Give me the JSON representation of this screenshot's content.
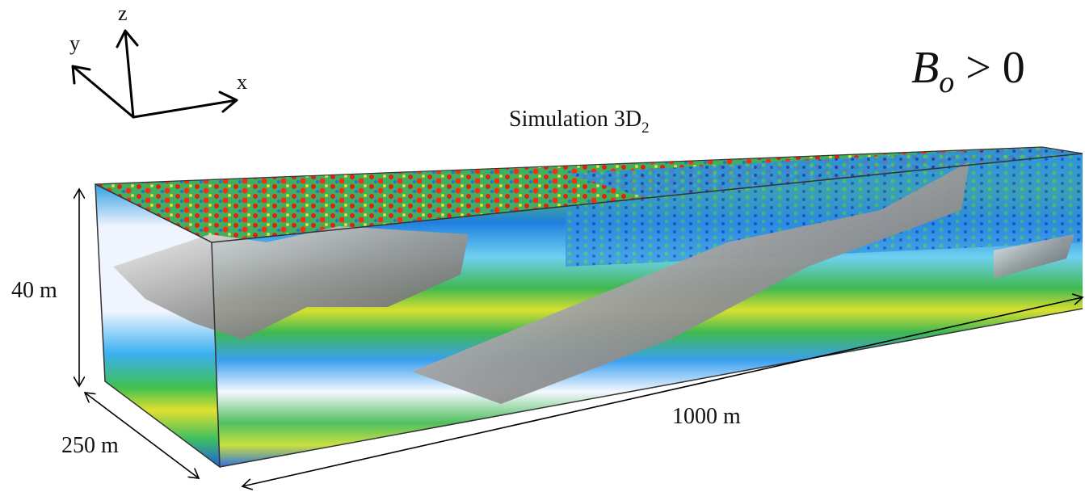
{
  "axes_triad": {
    "z": "z",
    "y": "y",
    "x": "x"
  },
  "title": {
    "text": "Simulation 3D",
    "subscript": "2"
  },
  "condition": {
    "symbol": "B",
    "subscript": "o",
    "relation": "> 0"
  },
  "dimensions": {
    "height": "40 m",
    "width": "250 m",
    "length": "1000 m"
  }
}
